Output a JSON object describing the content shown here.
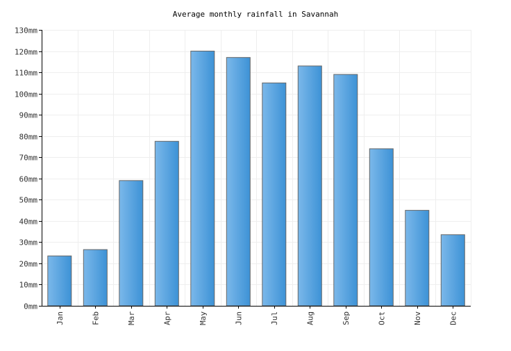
{
  "chart_data": {
    "type": "bar",
    "title": "Average monthly rainfall in Savannah",
    "categories": [
      "Jan",
      "Feb",
      "Mar",
      "Apr",
      "May",
      "Jun",
      "Jul",
      "Aug",
      "Sep",
      "Oct",
      "Nov",
      "Dec"
    ],
    "values": [
      23.5,
      26.5,
      59,
      77.5,
      120,
      117,
      105,
      113,
      109,
      74,
      45,
      33.5
    ],
    "unit": "mm",
    "ylim": [
      0,
      130
    ],
    "yticks": [
      0,
      10,
      20,
      30,
      40,
      50,
      60,
      70,
      80,
      90,
      100,
      110,
      120,
      130
    ],
    "ytick_labels": [
      "0mm",
      "10mm",
      "20mm",
      "30mm",
      "40mm",
      "50mm",
      "60mm",
      "70mm",
      "80mm",
      "90mm",
      "100mm",
      "110mm",
      "120mm",
      "130mm"
    ],
    "xlabel": "",
    "ylabel": "",
    "grid": true,
    "legend": "none",
    "colors": {
      "bar_light": "#7bb8ea",
      "bar_dark": "#3d92d6",
      "bar_border": "#666666",
      "grid": "#eeeeee",
      "axis": "#000000"
    }
  }
}
